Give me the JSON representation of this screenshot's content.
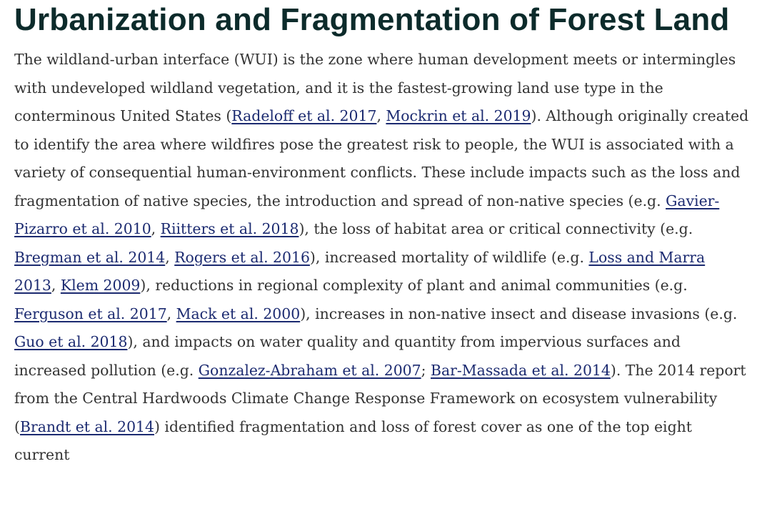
{
  "heading": "Urbanization and Fragmentation of Forest Land",
  "paragraph": [
    {
      "text": "The wildland-urban interface (WUI) is the zone where human development meets or intermingles with undeveloped wildland vegetation, and it is the fastest-growing land use type in the conterminous United States ("
    },
    {
      "link": "Radeloff et al. 2017"
    },
    {
      "text": ", "
    },
    {
      "link": "Mockrin et al. 2019"
    },
    {
      "text": "). Although originally created to identify the area where wildfires pose the greatest risk to people, the WUI is associated with a variety of consequential human-environment conflicts. These include impacts such as the loss and fragmentation of native species, the introduction and spread of non-native species (e.g. "
    },
    {
      "link": "Gavier-Pizarro et al. 2010"
    },
    {
      "text": ", "
    },
    {
      "link": "Riitters et al. 2018"
    },
    {
      "text": "), the loss of habitat area or critical connectivity (e.g. "
    },
    {
      "link": "Bregman et al. 2014"
    },
    {
      "text": ", "
    },
    {
      "link": "Rogers et al. 2016"
    },
    {
      "text": "), increased mortality of wildlife (e.g. "
    },
    {
      "link": "Loss and Marra 2013"
    },
    {
      "text": ", "
    },
    {
      "link": "Klem 2009"
    },
    {
      "text": "), reductions in regional complexity of plant and animal communities (e.g. "
    },
    {
      "link": "Ferguson et al. 2017"
    },
    {
      "text": ", "
    },
    {
      "link": "Mack et al. 2000"
    },
    {
      "text": "), increases in non-native insect and disease invasions (e.g. "
    },
    {
      "link": "Guo et al. 2018"
    },
    {
      "text": "), and impacts on water quality and quantity from impervious surfaces and increased pollution (e.g. "
    },
    {
      "link": "Gonzalez-Abraham et al. 2007"
    },
    {
      "text": "; "
    },
    {
      "link": "Bar-Massada et al. 2014"
    },
    {
      "text": "). The 2014 report from the Central Hardwoods Climate Change Response Framework on ecosystem vulnerability ("
    },
    {
      "link": "Brandt et al. 2014"
    },
    {
      "text": ") identified fragmentation and loss of forest cover as one of the top eight current"
    }
  ]
}
